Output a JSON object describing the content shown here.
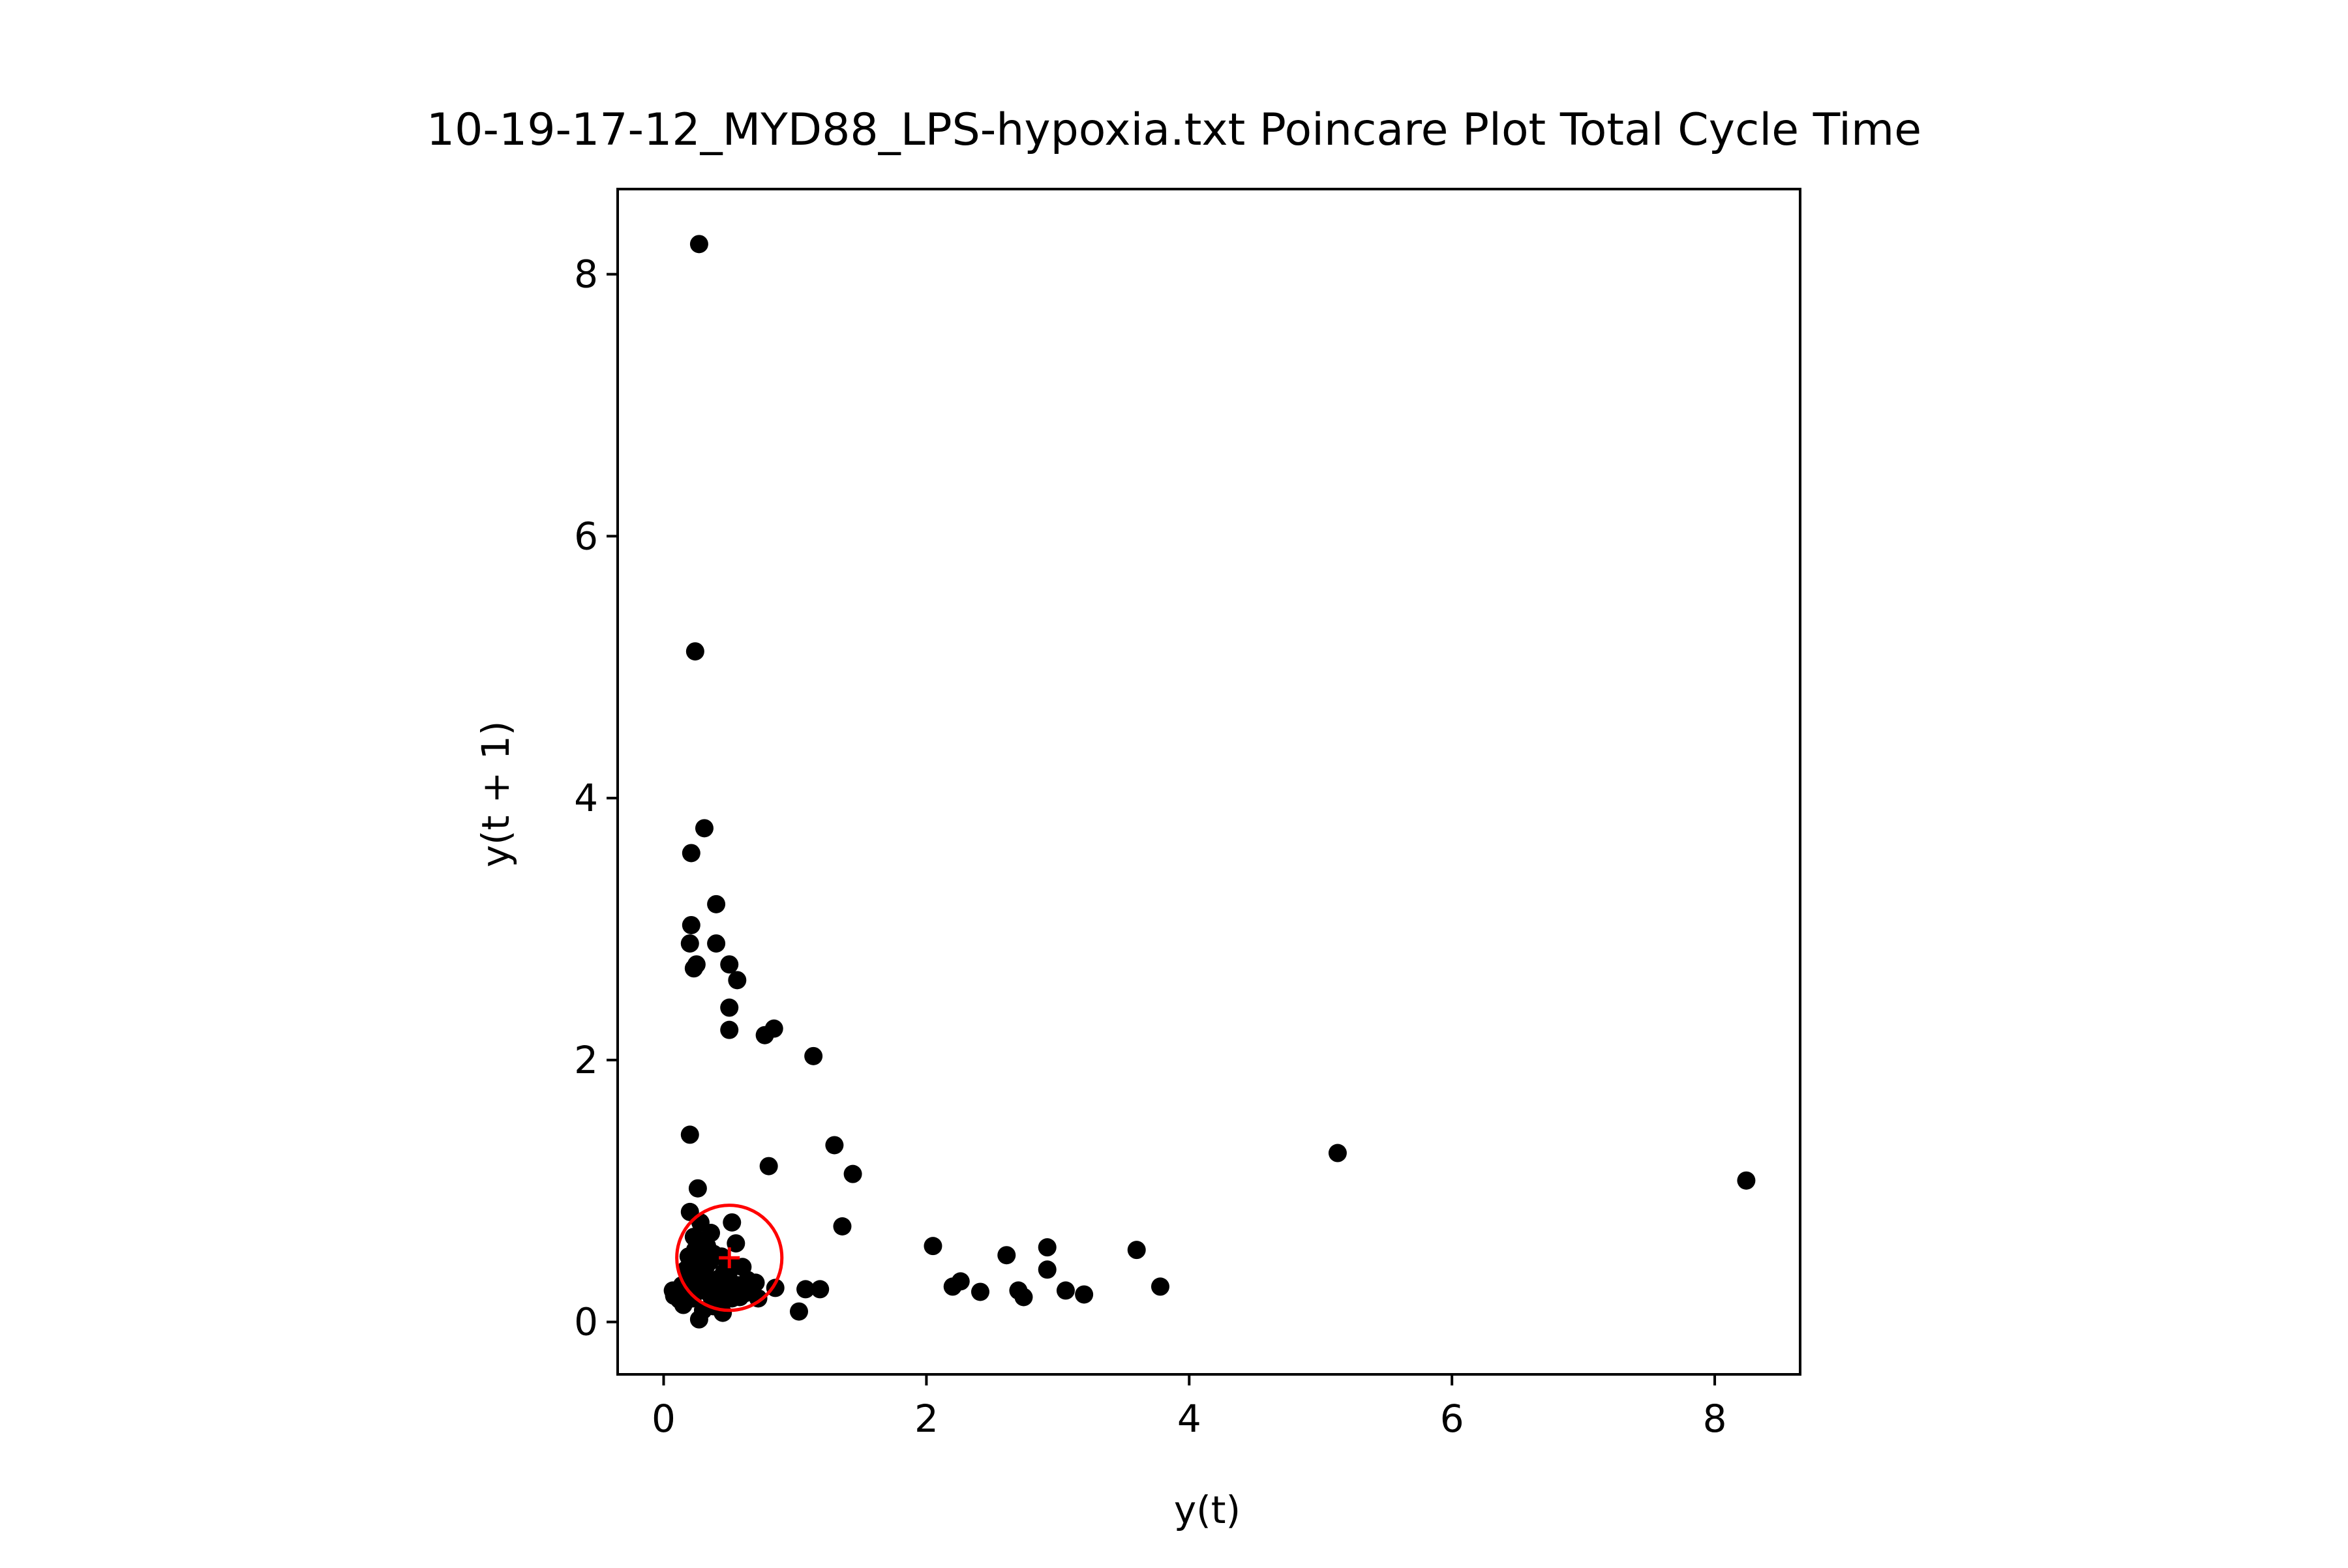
{
  "chart_data": {
    "type": "scatter",
    "title": "10-19-17-12_MYD88_LPS-hypoxia.txt Poincare Plot Total Cycle Time",
    "xlabel": "y(t)",
    "ylabel": "y(t + 1)",
    "xlim": [
      -0.35,
      8.65
    ],
    "ylim": [
      -0.4,
      8.65
    ],
    "xticks": [
      0,
      2,
      4,
      6,
      8
    ],
    "yticks": [
      0,
      2,
      4,
      6,
      8
    ],
    "grid": false,
    "legend": "none",
    "colors": {
      "points": "#000000",
      "centroid": "#ff0000",
      "axes": "#000000"
    },
    "centroid": {
      "x": 0.5,
      "y": 0.49,
      "radius": 0.4
    },
    "points": [
      {
        "x": 0.27,
        "y": 8.23
      },
      {
        "x": 0.24,
        "y": 5.12
      },
      {
        "x": 0.31,
        "y": 3.77
      },
      {
        "x": 0.21,
        "y": 3.58
      },
      {
        "x": 0.4,
        "y": 3.19
      },
      {
        "x": 0.21,
        "y": 3.03
      },
      {
        "x": 0.2,
        "y": 2.89
      },
      {
        "x": 0.4,
        "y": 2.89
      },
      {
        "x": 0.25,
        "y": 2.73
      },
      {
        "x": 0.23,
        "y": 2.7
      },
      {
        "x": 0.5,
        "y": 2.73
      },
      {
        "x": 0.56,
        "y": 2.61
      },
      {
        "x": 0.5,
        "y": 2.4
      },
      {
        "x": 0.5,
        "y": 2.23
      },
      {
        "x": 0.77,
        "y": 2.19
      },
      {
        "x": 0.84,
        "y": 2.24
      },
      {
        "x": 1.14,
        "y": 2.03
      },
      {
        "x": 0.2,
        "y": 1.43
      },
      {
        "x": 1.3,
        "y": 1.35
      },
      {
        "x": 0.8,
        "y": 1.19
      },
      {
        "x": 1.44,
        "y": 1.13
      },
      {
        "x": 0.26,
        "y": 1.02
      },
      {
        "x": 0.2,
        "y": 0.84
      },
      {
        "x": 1.36,
        "y": 0.73
      },
      {
        "x": 0.52,
        "y": 0.76
      },
      {
        "x": 2.05,
        "y": 0.58
      },
      {
        "x": 2.61,
        "y": 0.51
      },
      {
        "x": 2.92,
        "y": 0.57
      },
      {
        "x": 3.6,
        "y": 0.55
      },
      {
        "x": 2.92,
        "y": 0.4
      },
      {
        "x": 2.2,
        "y": 0.27
      },
      {
        "x": 2.26,
        "y": 0.31
      },
      {
        "x": 2.41,
        "y": 0.23
      },
      {
        "x": 2.7,
        "y": 0.24
      },
      {
        "x": 2.74,
        "y": 0.19
      },
      {
        "x": 3.06,
        "y": 0.24
      },
      {
        "x": 3.2,
        "y": 0.21
      },
      {
        "x": 3.78,
        "y": 0.27
      },
      {
        "x": 5.13,
        "y": 1.29
      },
      {
        "x": 8.24,
        "y": 1.08
      },
      {
        "x": 1.08,
        "y": 0.25
      },
      {
        "x": 1.19,
        "y": 0.25
      },
      {
        "x": 1.03,
        "y": 0.08
      },
      {
        "x": 0.85,
        "y": 0.26
      },
      {
        "x": 0.72,
        "y": 0.18
      },
      {
        "x": 0.07,
        "y": 0.24
      },
      {
        "x": 0.08,
        "y": 0.2
      },
      {
        "x": 0.12,
        "y": 0.17
      },
      {
        "x": 0.15,
        "y": 0.13
      },
      {
        "x": 0.18,
        "y": 0.25
      },
      {
        "x": 0.2,
        "y": 0.35
      },
      {
        "x": 0.22,
        "y": 0.45
      },
      {
        "x": 0.24,
        "y": 0.55
      },
      {
        "x": 0.26,
        "y": 0.63
      },
      {
        "x": 0.28,
        "y": 0.76
      },
      {
        "x": 0.3,
        "y": 0.5
      },
      {
        "x": 0.32,
        "y": 0.42
      },
      {
        "x": 0.34,
        "y": 0.3
      },
      {
        "x": 0.36,
        "y": 0.2
      },
      {
        "x": 0.38,
        "y": 0.12
      },
      {
        "x": 0.27,
        "y": 0.02
      },
      {
        "x": 0.45,
        "y": 0.07
      },
      {
        "x": 0.42,
        "y": 0.33
      },
      {
        "x": 0.44,
        "y": 0.5
      },
      {
        "x": 0.46,
        "y": 0.38
      },
      {
        "x": 0.48,
        "y": 0.26
      },
      {
        "x": 0.52,
        "y": 0.18
      },
      {
        "x": 0.55,
        "y": 0.6
      },
      {
        "x": 0.57,
        "y": 0.28
      },
      {
        "x": 0.6,
        "y": 0.42
      },
      {
        "x": 0.62,
        "y": 0.22
      },
      {
        "x": 0.64,
        "y": 0.32
      },
      {
        "x": 0.67,
        "y": 0.26
      },
      {
        "x": 0.7,
        "y": 0.3
      },
      {
        "x": 0.22,
        "y": 0.18
      },
      {
        "x": 0.25,
        "y": 0.28
      },
      {
        "x": 0.29,
        "y": 0.36
      },
      {
        "x": 0.31,
        "y": 0.24
      },
      {
        "x": 0.33,
        "y": 0.58
      },
      {
        "x": 0.35,
        "y": 0.46
      },
      {
        "x": 0.19,
        "y": 0.5
      },
      {
        "x": 0.23,
        "y": 0.65
      },
      {
        "x": 0.17,
        "y": 0.4
      },
      {
        "x": 0.4,
        "y": 0.22
      },
      {
        "x": 0.43,
        "y": 0.15
      },
      {
        "x": 0.5,
        "y": 0.32
      },
      {
        "x": 0.53,
        "y": 0.42
      },
      {
        "x": 0.58,
        "y": 0.19
      },
      {
        "x": 0.36,
        "y": 0.68
      },
      {
        "x": 0.27,
        "y": 0.44
      },
      {
        "x": 0.14,
        "y": 0.28
      },
      {
        "x": 0.3,
        "y": 0.09
      },
      {
        "x": 0.38,
        "y": 0.52
      }
    ]
  }
}
